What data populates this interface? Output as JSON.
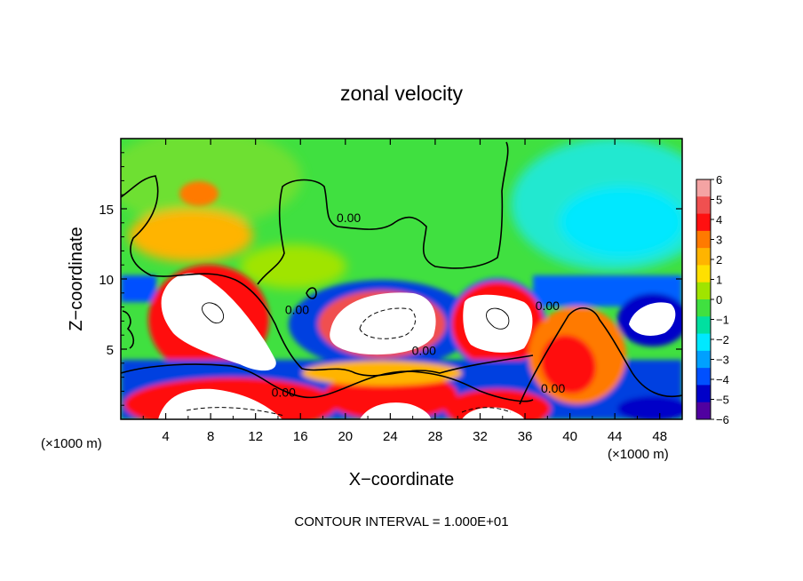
{
  "chart_data": {
    "type": "heatmap",
    "title": "zonal velocity",
    "xlabel": "X−coordinate",
    "ylabel": "Z−coordinate",
    "x_unit_left": "(×1000 m)",
    "x_unit_right": "(×1000 m)",
    "xlim": [
      0,
      50
    ],
    "ylim": [
      0,
      20
    ],
    "x_ticks": [
      4,
      8,
      12,
      16,
      20,
      24,
      28,
      32,
      36,
      40,
      44,
      48
    ],
    "y_ticks": [
      5,
      10,
      15
    ],
    "colorbar": {
      "levels": [
        6,
        5,
        4,
        3,
        2,
        1,
        0,
        -1,
        -2,
        -3,
        -4,
        -5,
        -6
      ],
      "labels": [
        "6",
        "5",
        "4",
        "3",
        "2",
        "1",
        "0",
        "−1",
        "−2",
        "−3",
        "−4",
        "−5",
        "−6"
      ],
      "colors": [
        "#f4a3a3",
        "#f05050",
        "#ff1010",
        "#ff7a00",
        "#ffb400",
        "#ffe000",
        "#a0e400",
        "#40e040",
        "#00e0a0",
        "#00e8ff",
        "#00a0ff",
        "#0050ff",
        "#0000c8",
        "#5000a0"
      ]
    },
    "contour_labels": [
      "0.00",
      "0.00",
      "0.00",
      "0.00",
      "0.00",
      "0.00"
    ],
    "footer": "CONTOUR INTERVAL = 1.000E+01",
    "regions": [
      {
        "x": 24,
        "z": 16,
        "value": 0.5
      },
      {
        "x": 45,
        "z": 15,
        "value": -1.8
      },
      {
        "x": 8,
        "z": 16.5,
        "value": 3.5
      },
      {
        "x": 6,
        "z": 13,
        "value": 2.2
      },
      {
        "x": 8,
        "z": 7.5,
        "value": 7
      },
      {
        "x": 24,
        "z": 7,
        "value": 7
      },
      {
        "x": 33,
        "z": 7,
        "value": 7
      },
      {
        "x": 47,
        "z": 7.5,
        "value": 7
      },
      {
        "x": 8,
        "z": 1,
        "value": 7
      },
      {
        "x": 24,
        "z": 1,
        "value": 7
      },
      {
        "x": 33,
        "z": 1,
        "value": 7
      },
      {
        "x": 40,
        "z": 4,
        "value": 3.5
      },
      {
        "x": 44,
        "z": 9,
        "value": -4.5
      },
      {
        "x": 24,
        "z": 3,
        "value": 1.5
      }
    ]
  }
}
